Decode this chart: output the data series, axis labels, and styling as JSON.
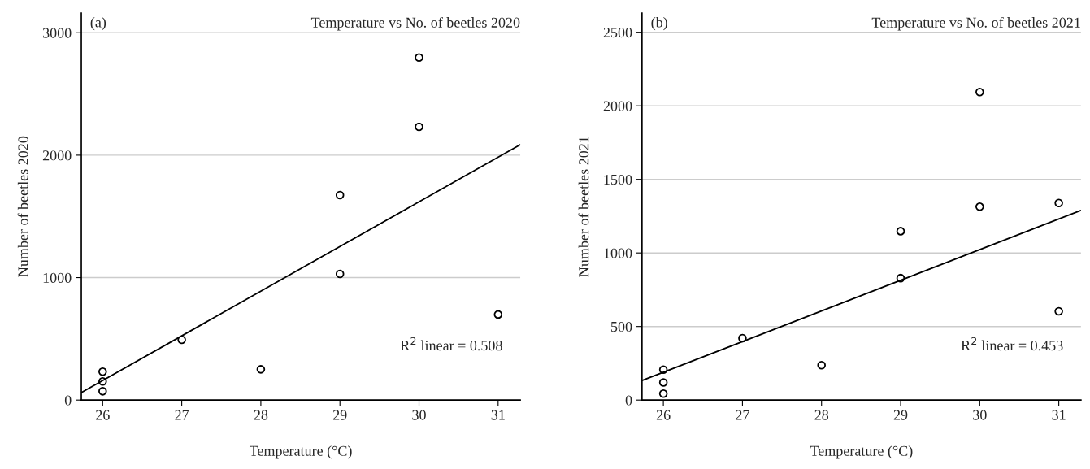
{
  "chart_data": [
    {
      "type": "scatter",
      "title": "Temperature vs No. of beetles 2020",
      "xlabel": "Temperature (°C)",
      "ylabel": "Number of beetles 2020",
      "annotations": [
        "(a)",
        "R$^{2}$ linear = 0.508"
      ],
      "xlim": [
        25.73,
        31.28
      ],
      "xticks": [
        26,
        27,
        28,
        29,
        30,
        31
      ],
      "ylim": [
        0,
        3160
      ],
      "yticks": [
        0,
        1000,
        2000,
        3000
      ],
      "grid": "y",
      "legend": false,
      "marker": "circle",
      "series": [
        {
          "color": "#000000",
          "x": [
            26,
            26,
            26,
            27,
            28,
            29,
            29,
            30,
            30,
            31
          ],
          "values": [
            232,
            152,
            72,
            492,
            251,
            1674,
            1030,
            2798,
            2232,
            699
          ]
        },
        {
          "type": "line",
          "marker": "none",
          "color": "#000000",
          "x": [
            25.73,
            31.28
          ],
          "values": [
            61,
            2086
          ]
        }
      ]
    },
    {
      "type": "scatter",
      "title": "Temperature vs No. of beetles 2021",
      "xlabel": "Temperature (°C)",
      "ylabel": "Number of beetles 2021",
      "annotations": [
        "(b)",
        "R$^{2}$ linear = 0.453"
      ],
      "xlim": [
        25.73,
        31.28
      ],
      "xticks": [
        26,
        27,
        28,
        29,
        30,
        31
      ],
      "ylim": [
        0,
        2630
      ],
      "yticks": [
        0,
        500,
        1000,
        1500,
        2000,
        2500
      ],
      "grid": "y",
      "legend": false,
      "marker": "circle",
      "series": [
        {
          "color": "#000000",
          "x": [
            26,
            26,
            26,
            27,
            28,
            29,
            29,
            30,
            30,
            31,
            31
          ],
          "values": [
            207,
            120,
            44,
            421,
            237,
            1148,
            829,
            2094,
            1314,
            1339,
            603
          ]
        },
        {
          "type": "line",
          "marker": "none",
          "color": "#000000",
          "x": [
            25.73,
            31.28
          ],
          "values": [
            133,
            1289
          ]
        }
      ]
    }
  ]
}
